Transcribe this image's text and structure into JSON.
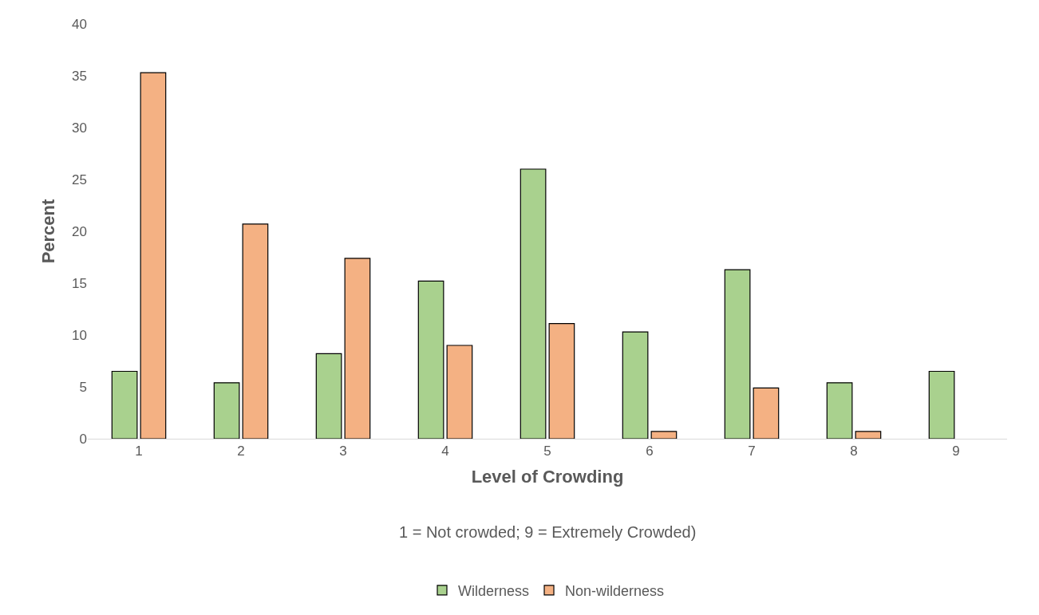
{
  "chart_data": {
    "type": "bar",
    "xlabel": "Level of Crowding",
    "ylabel": "Percent",
    "categories": [
      "1",
      "2",
      "3",
      "4",
      "5",
      "6",
      "7",
      "8",
      "9"
    ],
    "series": [
      {
        "name": "Wilderness",
        "color": "#a9d18e",
        "values": [
          6.5,
          5.4,
          8.2,
          15.2,
          26.0,
          10.3,
          16.3,
          5.4,
          6.5
        ]
      },
      {
        "name": "Non-wilderness",
        "color": "#f4b183",
        "values": [
          35.3,
          20.7,
          17.4,
          9.0,
          11.1,
          0.7,
          4.9,
          0.7,
          null
        ]
      }
    ],
    "ylim": [
      0,
      40
    ],
    "yticks": [
      0,
      5,
      10,
      15,
      20,
      25,
      30,
      35,
      40
    ],
    "legend": "bottom",
    "annotations": [
      "1 = Not crowded; 9 = Extremely Crowded)"
    ]
  }
}
